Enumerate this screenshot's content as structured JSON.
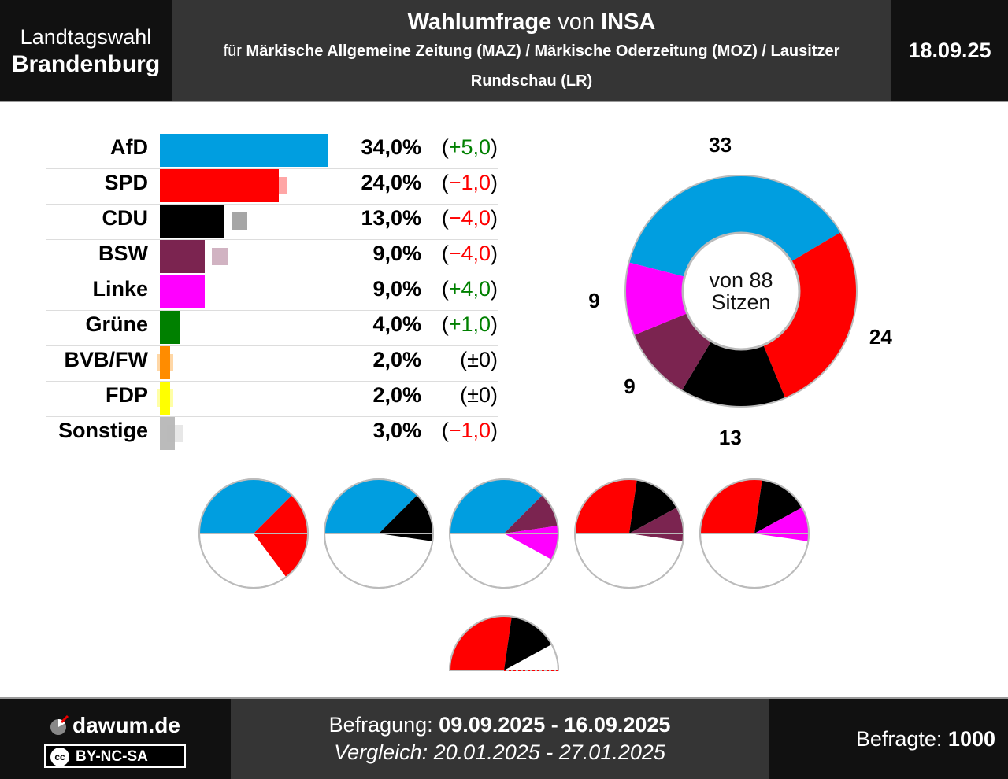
{
  "header": {
    "left_line1": "Landtagswahl",
    "left_line2": "Brandenburg",
    "title_main": "Wahlumfrage",
    "title_von": " von ",
    "title_institute": "INSA",
    "subtitle_pre": "für ",
    "subtitle_clients": "Märkische Allgemeine Zeitung (MAZ) / Märkische Oderzeitung (MOZ) / Lausitzer Rundschau (LR)",
    "date": "18.09.25"
  },
  "chart_data": [
    {
      "type": "bar",
      "orientation": "horizontal",
      "categories": [
        "AfD",
        "SPD",
        "CDU",
        "BSW",
        "Linke",
        "Grüne",
        "BVB/FW",
        "FDP",
        "Sonstige"
      ],
      "values": [
        34.0,
        24.0,
        13.0,
        9.0,
        9.0,
        4.0,
        2.0,
        2.0,
        3.0
      ],
      "previous_values": [
        29.0,
        25.0,
        17.0,
        13.0,
        5.0,
        3.0,
        2.0,
        2.0,
        4.0
      ],
      "value_labels": [
        "34,0%",
        "24,0%",
        "13,0%",
        "9,0%",
        "9,0%",
        "4,0%",
        "2,0%",
        "2,0%",
        "3,0%"
      ],
      "diff_labels": [
        "+5,0",
        "−1,0",
        "−4,0",
        "−4,0",
        "+4,0",
        "+1,0",
        "±0",
        "±0",
        "−1,0"
      ],
      "diff_sign": [
        "pos",
        "neg",
        "neg",
        "neg",
        "pos",
        "pos",
        "zero",
        "zero",
        "neg"
      ],
      "colors": [
        "#009ee0",
        "#ff0000",
        "#000000",
        "#7b2450",
        "#ff00ff",
        "#008000",
        "#ff8c00",
        "#ffff00",
        "#bbbbbb"
      ],
      "xlim": [
        0,
        34
      ]
    },
    {
      "type": "pie",
      "style": "donut",
      "categories": [
        "AfD",
        "SPD",
        "CDU",
        "BSW",
        "Linke"
      ],
      "values": [
        33,
        24,
        13,
        9,
        9
      ],
      "colors": [
        "#009ee0",
        "#ff0000",
        "#000000",
        "#7b2450",
        "#ff00ff"
      ],
      "total": 88,
      "center_line1": "von 88",
      "center_line2": "Sitzen",
      "labels": [
        "33",
        "24",
        "13",
        "9",
        "9"
      ]
    },
    {
      "type": "pie",
      "style": "coalition-semicircles",
      "coalitions": [
        {
          "values": [
            33,
            24
          ],
          "colors": [
            "#009ee0",
            "#ff0000"
          ]
        },
        {
          "values": [
            33,
            13
          ],
          "colors": [
            "#009ee0",
            "#000000"
          ]
        },
        {
          "values": [
            33,
            9,
            9
          ],
          "colors": [
            "#009ee0",
            "#7b2450",
            "#ff00ff"
          ]
        },
        {
          "values": [
            24,
            13,
            9
          ],
          "colors": [
            "#ff0000",
            "#000000",
            "#7b2450"
          ]
        },
        {
          "values": [
            24,
            13,
            9
          ],
          "colors": [
            "#ff0000",
            "#000000",
            "#ff00ff"
          ]
        },
        {
          "values": [
            24,
            13
          ],
          "colors": [
            "#ff0000",
            "#000000"
          ],
          "half_only": true
        }
      ],
      "total": 88
    }
  ],
  "footer": {
    "brand": "dawum.de",
    "license": "BY-NC-SA",
    "license_icon": "cc",
    "befragung_label": "Befragung: ",
    "befragung_value": "09.09.2025 - 16.09.2025",
    "vergleich": "Vergleich: 20.01.2025 - 27.01.2025",
    "befragte_label": "Befragte: ",
    "befragte_value": "1000"
  }
}
